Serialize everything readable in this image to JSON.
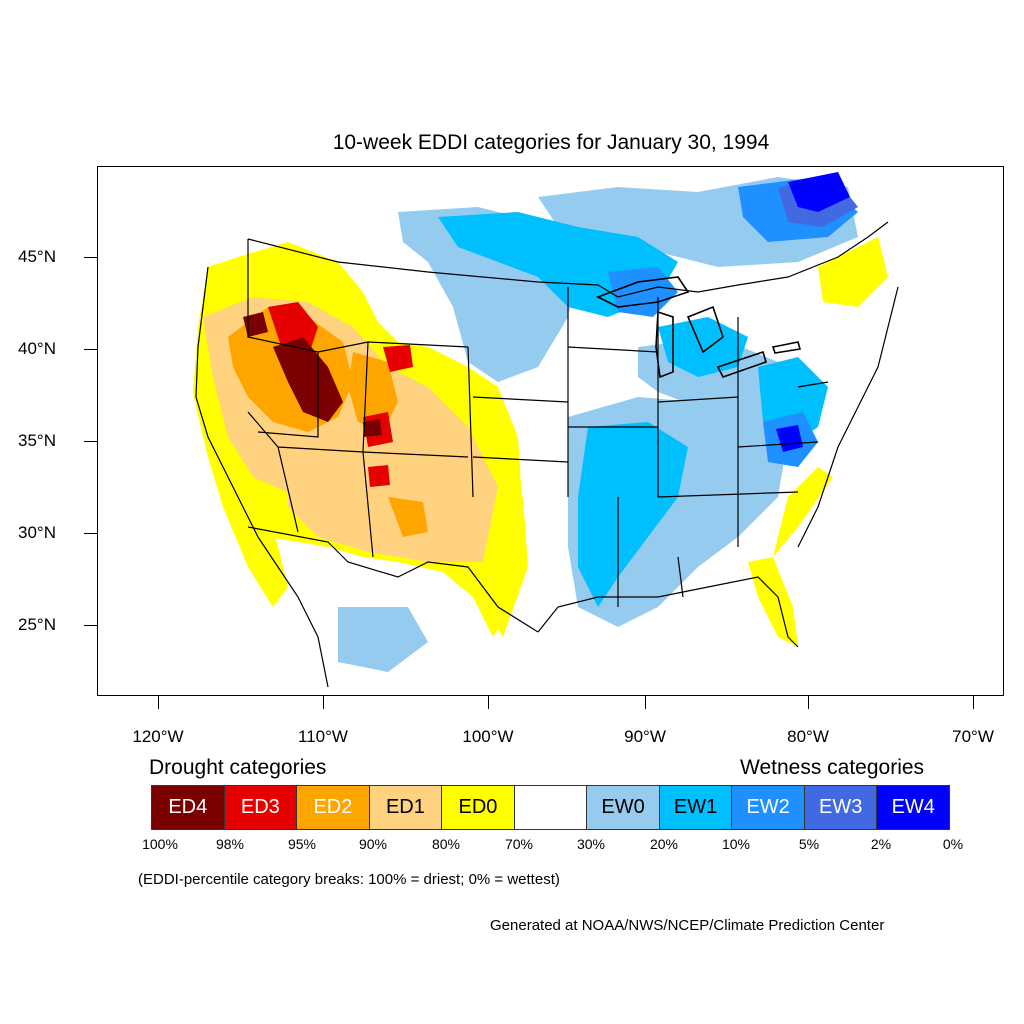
{
  "title": "10-week EDDI categories for January 30, 1994",
  "lat_labels": [
    "45°N",
    "40°N",
    "35°N",
    "30°N",
    "25°N"
  ],
  "lon_labels": [
    "120°W",
    "110°W",
    "100°W",
    "90°W",
    "80°W",
    "70°W"
  ],
  "legend": {
    "drought_heading": "Drought categories",
    "wetness_heading": "Wetness categories",
    "categories": [
      {
        "label": "ED4",
        "color": "#7a0000",
        "text_color": "#ffffff"
      },
      {
        "label": "ED3",
        "color": "#e60000",
        "text_color": "#ffffff"
      },
      {
        "label": "ED2",
        "color": "#ffa500",
        "text_color": "#ffffff"
      },
      {
        "label": "ED1",
        "color": "#ffd280",
        "text_color": "#000000"
      },
      {
        "label": "ED0",
        "color": "#ffff00",
        "text_color": "#000000"
      },
      {
        "label": "",
        "color": "#ffffff",
        "text_color": "#000000"
      },
      {
        "label": "EW0",
        "color": "#96cbf0",
        "text_color": "#000000"
      },
      {
        "label": "EW1",
        "color": "#00bfff",
        "text_color": "#000000"
      },
      {
        "label": "EW2",
        "color": "#1e90ff",
        "text_color": "#ffffff"
      },
      {
        "label": "EW3",
        "color": "#4169e1",
        "text_color": "#ffffff"
      },
      {
        "label": "EW4",
        "color": "#0000ff",
        "text_color": "#ffffff"
      }
    ],
    "percentiles": [
      "100%",
      "98%",
      "95%",
      "90%",
      "80%",
      "70%",
      "30%",
      "20%",
      "10%",
      "5%",
      "2%",
      "0%"
    ]
  },
  "note": "(EDDI-percentile category breaks: 100% = driest; 0% = wettest)",
  "credit": "Generated at NOAA/NWS/NCEP/Climate Prediction Center"
}
